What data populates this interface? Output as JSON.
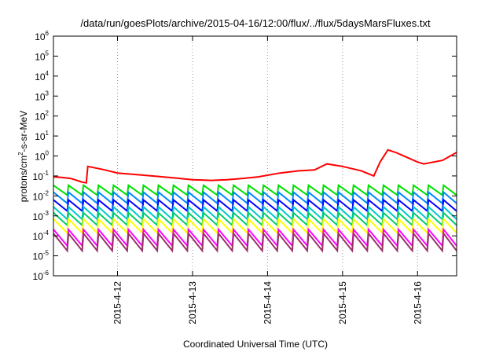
{
  "chart_data": {
    "type": "line",
    "title": "/data/run/goesPlots/archive/2015-04-16/12:00/flux/../flux/5daysMarsFluxes.txt",
    "xlabel": "Coordinated Universal Time (UTC)",
    "ylabel_prefix": "protons/cm",
    "ylabel_sup": "2",
    "ylabel_suffix": "-s-sr-MeV",
    "y_scale": "log",
    "ylim": [
      1e-06,
      1000000.0
    ],
    "xlim": [
      "2015-04-11T03:30",
      "2015-04-16T12:30"
    ],
    "x_grid": "dotted vertical at each day",
    "y_grid": "off",
    "y_ticks": [
      {
        "base": "10",
        "exp": "-6"
      },
      {
        "base": "10",
        "exp": "-5"
      },
      {
        "base": "10",
        "exp": "-4"
      },
      {
        "base": "10",
        "exp": "-3"
      },
      {
        "base": "10",
        "exp": "-2"
      },
      {
        "base": "10",
        "exp": "-1"
      },
      {
        "base": "10",
        "exp": "0"
      },
      {
        "base": "10",
        "exp": "1"
      },
      {
        "base": "10",
        "exp": "2"
      },
      {
        "base": "10",
        "exp": "3"
      },
      {
        "base": "10",
        "exp": "4"
      },
      {
        "base": "10",
        "exp": "5"
      },
      {
        "base": "10",
        "exp": "6"
      }
    ],
    "x_ticks": [
      "2015-4-12",
      "2015-4-13",
      "2015-4-14",
      "2015-4-15",
      "2015-4-16"
    ],
    "series": [
      {
        "color": "#ff0000",
        "x": [
          "2015-04-11T03:30",
          "2015-04-11T06:00",
          "2015-04-11T09:00",
          "2015-04-11T11:00",
          "2015-04-11T12:30",
          "2015-04-11T14:00",
          "2015-04-11T14:30",
          "2015-04-11T17:00",
          "2015-04-11T20:00",
          "2015-04-12T00:00",
          "2015-04-12T05:00",
          "2015-04-12T11:00",
          "2015-04-12T18:00",
          "2015-04-13T00:00",
          "2015-04-13T06:00",
          "2015-04-13T11:00",
          "2015-04-13T16:00",
          "2015-04-13T21:00",
          "2015-04-14T04:00",
          "2015-04-14T10:00",
          "2015-04-14T15:00",
          "2015-04-14T19:00",
          "2015-04-15T00:00",
          "2015-04-15T06:00",
          "2015-04-15T10:00",
          "2015-04-15T12:00",
          "2015-04-15T14:30",
          "2015-04-15T17:00",
          "2015-04-16T00:00",
          "2015-04-16T02:00",
          "2015-04-16T08:00",
          "2015-04-16T12:30"
        ],
        "y": [
          0.09,
          0.085,
          0.075,
          0.06,
          0.05,
          0.045,
          0.3,
          0.25,
          0.2,
          0.14,
          0.12,
          0.1,
          0.08,
          0.065,
          0.06,
          0.065,
          0.075,
          0.09,
          0.14,
          0.18,
          0.2,
          0.4,
          0.3,
          0.18,
          0.1,
          0.5,
          2.0,
          1.5,
          0.5,
          0.4,
          0.6,
          1.5
        ]
      },
      {
        "color": "#00e000",
        "mean": 0.02,
        "peak_factor": 1.7,
        "trough_factor": 0.55
      },
      {
        "color": "#0088ff",
        "mean": 0.0085,
        "peak_factor": 1.8,
        "trough_factor": 0.5
      },
      {
        "color": "#0000ff",
        "mean": 0.0035,
        "peak_factor": 1.8,
        "trough_factor": 0.5
      },
      {
        "color": "#00c8c8",
        "mean": 0.0015,
        "peak_factor": 1.9,
        "trough_factor": 0.45
      },
      {
        "color": "#00cc66",
        "mean": 0.00075,
        "peak_factor": 1.9,
        "trough_factor": 0.45
      },
      {
        "color": "#ffff00",
        "mean": 0.00035,
        "peak_factor": 2.0,
        "trough_factor": 0.4
      },
      {
        "color": "#ff00ff",
        "mean": 0.000105,
        "peak_factor": 2.0,
        "trough_factor": 0.3
      },
      {
        "color": "#993366",
        "mean": 6e-05,
        "peak_factor": 2.2,
        "trough_factor": 0.3
      }
    ]
  }
}
